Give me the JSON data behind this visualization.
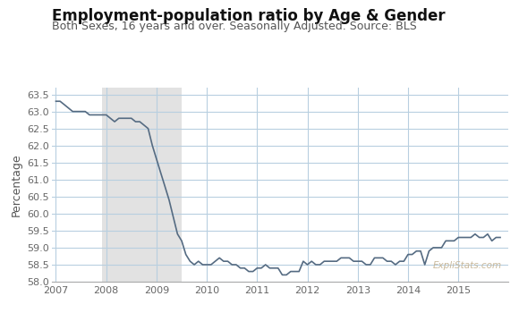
{
  "title": "Employment-population ratio by Age & Gender",
  "subtitle": "Both Sexes, 16 years and over. Seasonally Adjusted. Source: BLS",
  "ylabel": "Percentage",
  "watermark": "ExpliStats.com",
  "ylim": [
    58.0,
    63.7
  ],
  "yticks": [
    58.0,
    58.5,
    59.0,
    59.5,
    60.0,
    60.5,
    61.0,
    61.5,
    62.0,
    62.5,
    63.0,
    63.5
  ],
  "xlim": [
    2006.92,
    2016.0
  ],
  "xticks": [
    2007,
    2008,
    2009,
    2010,
    2011,
    2012,
    2013,
    2014,
    2015
  ],
  "recession_start": 2007.917,
  "recession_end": 2009.5,
  "line_color": "#556b82",
  "recession_color": "#e2e2e2",
  "grid_color": "#b8cfe0",
  "background_color": "#ffffff",
  "title_fontsize": 12,
  "subtitle_fontsize": 9,
  "ylabel_fontsize": 9,
  "tick_fontsize": 8,
  "watermark_color": "#c8b89a",
  "data": [
    [
      2007.0,
      63.3
    ],
    [
      2007.083,
      63.3
    ],
    [
      2007.167,
      63.2
    ],
    [
      2007.25,
      63.1
    ],
    [
      2007.333,
      63.0
    ],
    [
      2007.417,
      63.0
    ],
    [
      2007.5,
      63.0
    ],
    [
      2007.583,
      63.0
    ],
    [
      2007.667,
      62.9
    ],
    [
      2007.75,
      62.9
    ],
    [
      2007.833,
      62.9
    ],
    [
      2007.917,
      62.9
    ],
    [
      2008.0,
      62.9
    ],
    [
      2008.083,
      62.8
    ],
    [
      2008.167,
      62.7
    ],
    [
      2008.25,
      62.8
    ],
    [
      2008.333,
      62.8
    ],
    [
      2008.417,
      62.8
    ],
    [
      2008.5,
      62.8
    ],
    [
      2008.583,
      62.7
    ],
    [
      2008.667,
      62.7
    ],
    [
      2008.75,
      62.6
    ],
    [
      2008.833,
      62.5
    ],
    [
      2008.917,
      62.0
    ],
    [
      2009.0,
      61.6
    ],
    [
      2009.083,
      61.2
    ],
    [
      2009.167,
      60.8
    ],
    [
      2009.25,
      60.4
    ],
    [
      2009.333,
      59.9
    ],
    [
      2009.417,
      59.4
    ],
    [
      2009.5,
      59.2
    ],
    [
      2009.583,
      58.8
    ],
    [
      2009.667,
      58.6
    ],
    [
      2009.75,
      58.5
    ],
    [
      2009.833,
      58.6
    ],
    [
      2009.917,
      58.5
    ],
    [
      2010.0,
      58.5
    ],
    [
      2010.083,
      58.5
    ],
    [
      2010.167,
      58.6
    ],
    [
      2010.25,
      58.7
    ],
    [
      2010.333,
      58.6
    ],
    [
      2010.417,
      58.6
    ],
    [
      2010.5,
      58.5
    ],
    [
      2010.583,
      58.5
    ],
    [
      2010.667,
      58.4
    ],
    [
      2010.75,
      58.4
    ],
    [
      2010.833,
      58.3
    ],
    [
      2010.917,
      58.3
    ],
    [
      2011.0,
      58.4
    ],
    [
      2011.083,
      58.4
    ],
    [
      2011.167,
      58.5
    ],
    [
      2011.25,
      58.4
    ],
    [
      2011.333,
      58.4
    ],
    [
      2011.417,
      58.4
    ],
    [
      2011.5,
      58.2
    ],
    [
      2011.583,
      58.2
    ],
    [
      2011.667,
      58.3
    ],
    [
      2011.75,
      58.3
    ],
    [
      2011.833,
      58.3
    ],
    [
      2011.917,
      58.6
    ],
    [
      2012.0,
      58.5
    ],
    [
      2012.083,
      58.6
    ],
    [
      2012.167,
      58.5
    ],
    [
      2012.25,
      58.5
    ],
    [
      2012.333,
      58.6
    ],
    [
      2012.417,
      58.6
    ],
    [
      2012.5,
      58.6
    ],
    [
      2012.583,
      58.6
    ],
    [
      2012.667,
      58.7
    ],
    [
      2012.75,
      58.7
    ],
    [
      2012.833,
      58.7
    ],
    [
      2012.917,
      58.6
    ],
    [
      2013.0,
      58.6
    ],
    [
      2013.083,
      58.6
    ],
    [
      2013.167,
      58.5
    ],
    [
      2013.25,
      58.5
    ],
    [
      2013.333,
      58.7
    ],
    [
      2013.417,
      58.7
    ],
    [
      2013.5,
      58.7
    ],
    [
      2013.583,
      58.6
    ],
    [
      2013.667,
      58.6
    ],
    [
      2013.75,
      58.5
    ],
    [
      2013.833,
      58.6
    ],
    [
      2013.917,
      58.6
    ],
    [
      2014.0,
      58.8
    ],
    [
      2014.083,
      58.8
    ],
    [
      2014.167,
      58.9
    ],
    [
      2014.25,
      58.9
    ],
    [
      2014.333,
      58.5
    ],
    [
      2014.417,
      58.9
    ],
    [
      2014.5,
      59.0
    ],
    [
      2014.583,
      59.0
    ],
    [
      2014.667,
      59.0
    ],
    [
      2014.75,
      59.2
    ],
    [
      2014.833,
      59.2
    ],
    [
      2014.917,
      59.2
    ],
    [
      2015.0,
      59.3
    ],
    [
      2015.083,
      59.3
    ],
    [
      2015.167,
      59.3
    ],
    [
      2015.25,
      59.3
    ],
    [
      2015.333,
      59.4
    ],
    [
      2015.417,
      59.3
    ],
    [
      2015.5,
      59.3
    ],
    [
      2015.583,
      59.4
    ],
    [
      2015.667,
      59.2
    ],
    [
      2015.75,
      59.3
    ],
    [
      2015.833,
      59.3
    ]
  ]
}
